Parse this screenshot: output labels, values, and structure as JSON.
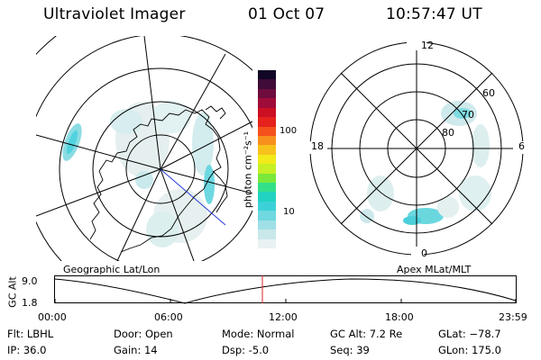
{
  "header": {
    "instrument": "Ultraviolet Imager",
    "date": "01 Oct 07",
    "time": "10:57:47 UT"
  },
  "colorbar": {
    "label": "photon cm⁻²s⁻¹",
    "ticks": [
      "100",
      "10"
    ],
    "colors": [
      "#e9f2f3",
      "#c9e8ea",
      "#9fe0e6",
      "#6fd8e0",
      "#3cd1d8",
      "#22d3c2",
      "#33e08a",
      "#7ae83a",
      "#c6ef24",
      "#f2ea1a",
      "#f8c21c",
      "#f7901d",
      "#f4511c",
      "#e5221c",
      "#cc0f22",
      "#a00c3a",
      "#6e0c3e",
      "#3e0c36",
      "#120626"
    ]
  },
  "geo_panel": {
    "label": "Geographic Lat/Lon"
  },
  "polar_panel": {
    "label": "Apex MLat/MLT",
    "mlt_labels": {
      "top": "12",
      "left": "18",
      "right": "6",
      "bottom": "0"
    },
    "lat_labels": [
      "60",
      "70",
      "80"
    ]
  },
  "alt_plot": {
    "ylabel": "GC Alt",
    "y_ticks": [
      "9.0",
      "1.8"
    ],
    "x_ticks": [
      "00:00",
      "06:00",
      "12:00",
      "18:00",
      "23:59"
    ],
    "marker_color": "#dd2222"
  },
  "info": {
    "flt": "Flt: LBHL",
    "ip": "IP: 36.0",
    "door": "Door: Open",
    "gain": "Gain: 14",
    "mode": "Mode: Normal",
    "dsp": "Dsp:   -5.0",
    "gcalt": "GC Alt: 7.2 Re",
    "seq": "Seq: 39",
    "glat": "GLat: −78.7",
    "glon": "GLon: 175.0"
  }
}
